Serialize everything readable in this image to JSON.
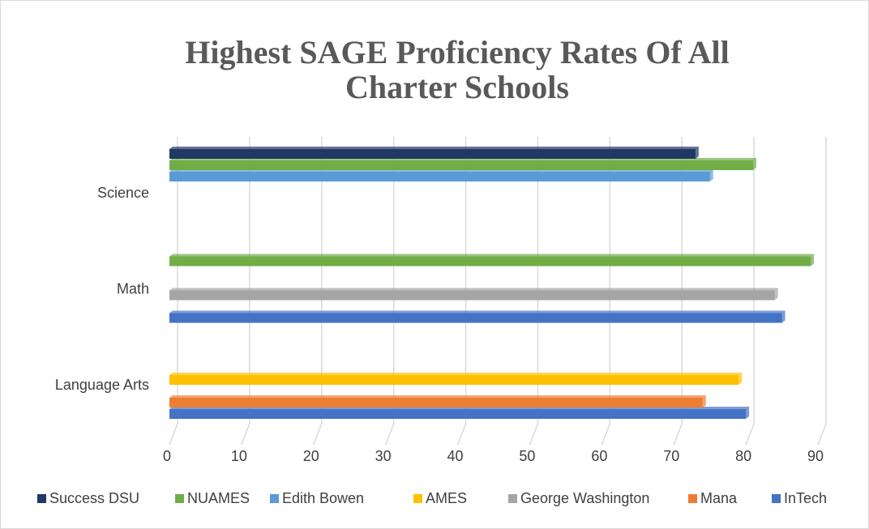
{
  "chart_data": {
    "type": "bar",
    "orientation": "horizontal",
    "title": "Highest SAGE Proficiency Rates Of All Charter Schools",
    "categories": [
      "Language Arts",
      "Math",
      "Science"
    ],
    "series": [
      {
        "name": "InTech",
        "color": "#4472c4",
        "values": [
          80,
          85,
          null
        ]
      },
      {
        "name": "Mana",
        "color": "#ed7d31",
        "values": [
          74,
          null,
          null
        ]
      },
      {
        "name": "George Washington",
        "color": "#a5a5a5",
        "values": [
          null,
          84,
          null
        ]
      },
      {
        "name": "AMES",
        "color": "#ffc000",
        "values": [
          79,
          null,
          null
        ]
      },
      {
        "name": "Edith Bowen",
        "color": "#5b9bd5",
        "values": [
          null,
          null,
          75
        ]
      },
      {
        "name": "NUAMES",
        "color": "#70ad47",
        "values": [
          null,
          89,
          81
        ]
      },
      {
        "name": "Success DSU",
        "color": "#203864",
        "values": [
          null,
          null,
          73
        ]
      }
    ],
    "xlim": [
      0,
      90
    ],
    "xticks": [
      0,
      10,
      20,
      30,
      40,
      50,
      60,
      70,
      80,
      90
    ],
    "grid": true,
    "legend": "bottom"
  }
}
